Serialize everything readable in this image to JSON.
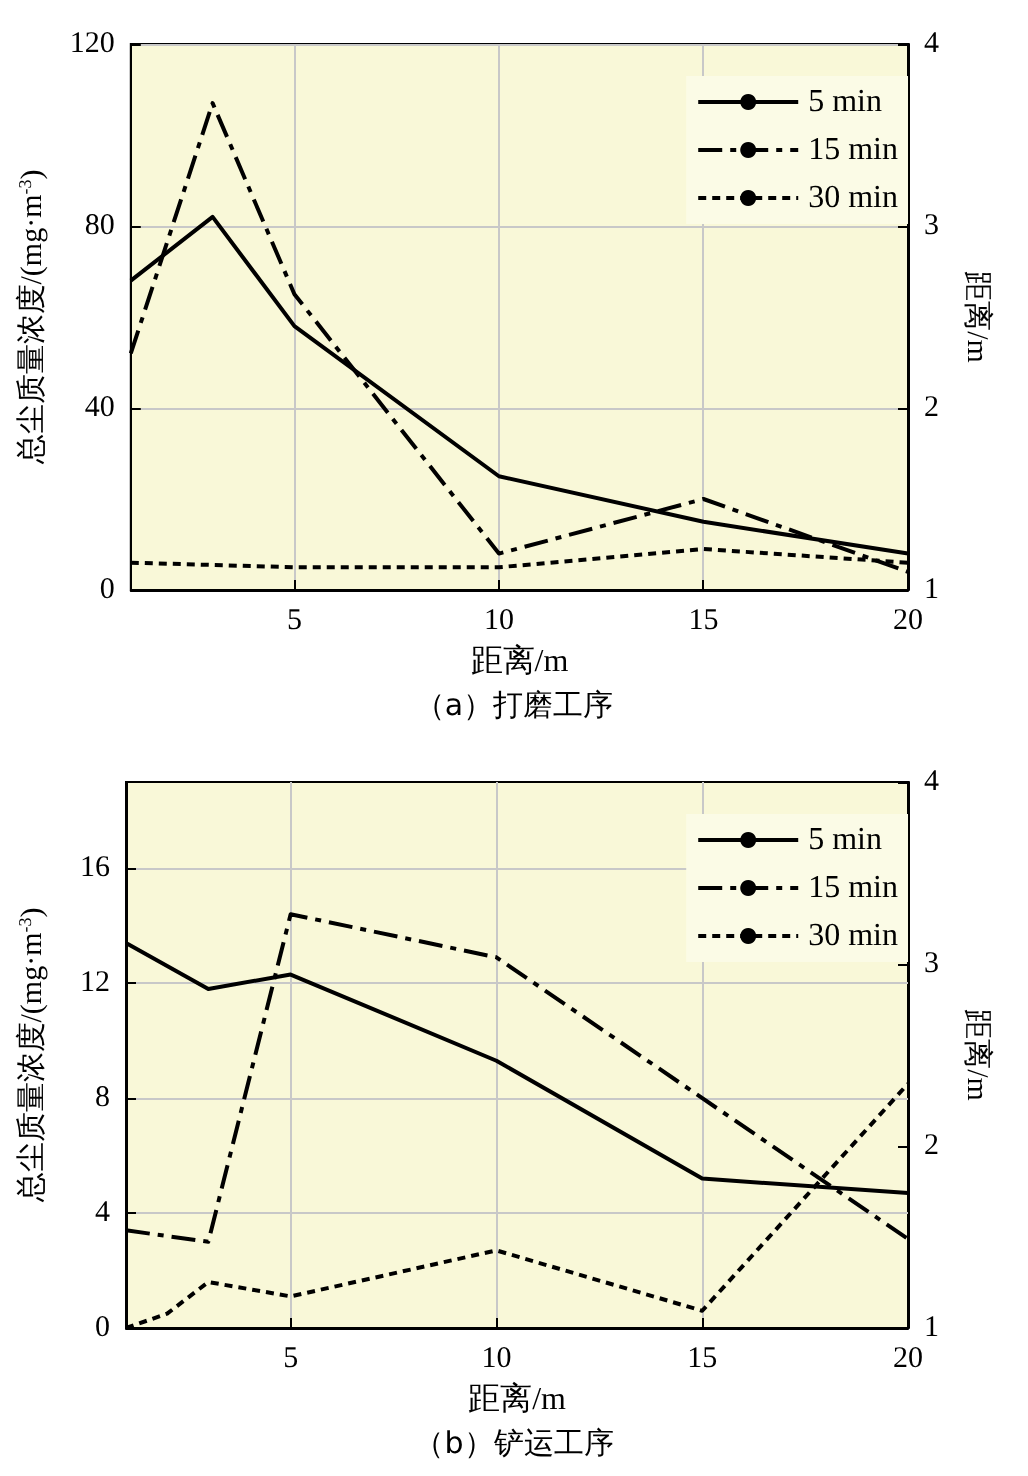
{
  "chart_data": [
    {
      "type": "line",
      "title": "（a）打磨工序",
      "xlabel": "距离/m",
      "ylabel": "总尘质量浓度/(mg·m$^{-3}$)",
      "y2label": "距离/m",
      "xlim": [
        1,
        20
      ],
      "xticks": [
        5,
        10,
        15,
        20
      ],
      "ylim": [
        0,
        120
      ],
      "yticks": [
        0,
        40,
        80,
        120
      ],
      "y2lim": [
        1,
        4
      ],
      "y2ticks": [
        1,
        2,
        3,
        4
      ],
      "grid": true,
      "legend": "top right",
      "marker": "none",
      "series": [
        {
          "name": "5 min",
          "color": "#000000",
          "line_style": "solid",
          "x": [
            1,
            3,
            5,
            10,
            15,
            20
          ],
          "values": [
            68,
            82,
            58,
            25,
            15,
            8
          ]
        },
        {
          "name": "15 min",
          "color": "#000000",
          "line_style": "dashed",
          "x": [
            1,
            3,
            5,
            10,
            15,
            20
          ],
          "values": [
            52,
            107,
            65,
            8,
            20,
            4
          ]
        },
        {
          "name": "30 min",
          "color": "#000000",
          "line_style": "dotted",
          "x": [
            1,
            5,
            10,
            15,
            20
          ],
          "values": [
            6,
            5,
            5,
            9,
            6
          ]
        }
      ]
    },
    {
      "type": "line",
      "title": "（b）铲运工序",
      "xlabel": "距离/m",
      "ylabel": "总尘质量浓度/(mg·m$^{-3}$)",
      "y2label": "距离/m",
      "xlim": [
        1,
        20
      ],
      "xticks": [
        5,
        10,
        15,
        20
      ],
      "ylim": [
        0,
        19
      ],
      "yticks": [
        0,
        4,
        8,
        12,
        16
      ],
      "y2lim": [
        1,
        4
      ],
      "y2ticks": [
        1,
        2,
        3,
        4
      ],
      "grid": true,
      "legend": "top right",
      "marker": "none",
      "series": [
        {
          "name": "5 min",
          "color": "#000000",
          "line_style": "solid",
          "x": [
            1,
            3,
            5,
            10,
            15,
            20
          ],
          "values": [
            13.4,
            11.8,
            12.3,
            9.3,
            5.2,
            4.7
          ]
        },
        {
          "name": "15 min",
          "color": "#000000",
          "line_style": "dashed",
          "x": [
            1,
            3,
            5,
            10,
            20
          ],
          "values": [
            3.4,
            3.0,
            14.4,
            12.9,
            3.1
          ]
        },
        {
          "name": "30 min",
          "color": "#000000",
          "line_style": "dotted",
          "x": [
            1,
            2,
            3,
            5,
            10,
            15,
            20
          ],
          "values": [
            0,
            0.5,
            1.6,
            1.1,
            2.7,
            0.6,
            8.5
          ]
        }
      ]
    }
  ]
}
